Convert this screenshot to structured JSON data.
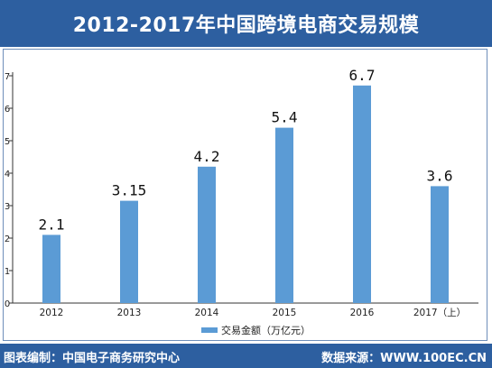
{
  "header": {
    "title": "2012-2017年中国跨境电商交易规模"
  },
  "footer": {
    "left": "图表编制：中国电子商务研究中心",
    "right": "数据来源：WWW.100EC.CN"
  },
  "colors": {
    "bar": "#5b9bd5",
    "title_bg": "#2d5fa0"
  },
  "chart_data": {
    "type": "bar",
    "categories": [
      "2012",
      "2013",
      "2014",
      "2015",
      "2016",
      "2017（上）"
    ],
    "series": [
      {
        "name": "交易金额（万亿元）",
        "values": [
          2.1,
          3.15,
          4.2,
          5.4,
          6.7,
          3.6
        ]
      }
    ],
    "data_labels": [
      "2.1",
      "3.15",
      "4.2",
      "5.4",
      "6.7",
      "3.6"
    ],
    "y_ticks": [
      "0",
      "1",
      "2",
      "3",
      "4",
      "5",
      "6",
      "7"
    ],
    "ylim": [
      0,
      7
    ],
    "legend_position": "bottom",
    "grid": false
  }
}
